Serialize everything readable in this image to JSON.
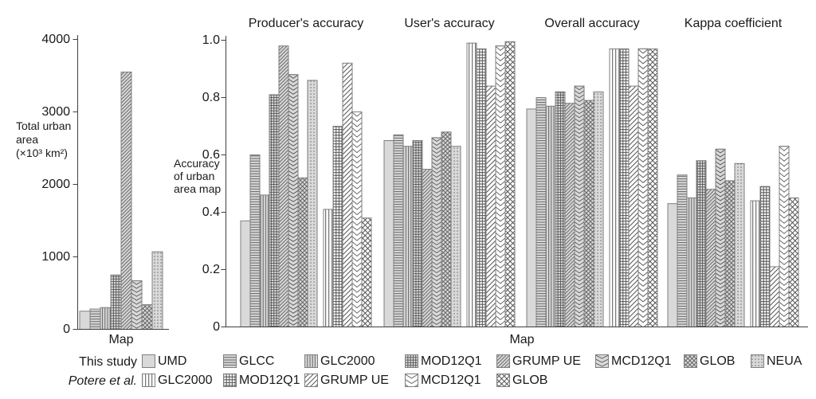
{
  "figure": {
    "description": "Comparison of total urban area and accuracy of urban area maps",
    "background": "#ffffff",
    "colors": {
      "bar_gray": "#d9d9d9",
      "bar_white": "#ffffff",
      "hatch": "#565656",
      "grid_hatch": "#4f4f4f",
      "dot": "#6a6a6a",
      "bar_border": "#7f7f7f",
      "axis": "#404040",
      "text": "#1a1a1a"
    }
  },
  "left_panel": {
    "ylabel_lines": [
      "Total urban",
      "area",
      "(×10³ km²)"
    ],
    "xlabel": "Map",
    "ytick_labels": [
      "0",
      "1000",
      "2000",
      "3000",
      "4000"
    ]
  },
  "right_panel": {
    "ylabel_lines": [
      "Accuracy",
      "of urban",
      "area map"
    ],
    "xlabel": "Map",
    "ytick_labels": [
      "0",
      "0.2",
      "0.4",
      "0.6",
      "0.8",
      "1.0"
    ],
    "group_titles": [
      "Producer's accuracy",
      "User's accuracy",
      "Overall accuracy",
      "Kappa coefficient"
    ]
  },
  "legend": {
    "row1_label": "This study",
    "row2_label": "Potere et al.",
    "row1_items": [
      {
        "label": "UMD",
        "pattern": "solid-gray"
      },
      {
        "label": "GLCC",
        "pattern": "h-gray"
      },
      {
        "label": "GLC2000",
        "pattern": "v-gray"
      },
      {
        "label": "MOD12Q1",
        "pattern": "grid-gray"
      },
      {
        "label": "GRUMP UE",
        "pattern": "diag-gray"
      },
      {
        "label": "MCD12Q1",
        "pattern": "chev-gray"
      },
      {
        "label": "GLOB",
        "pattern": "x-gray"
      },
      {
        "label": "NEUA",
        "pattern": "dots-gray"
      }
    ],
    "row2_items": [
      {
        "label": "GLC2000",
        "pattern": "v-white"
      },
      {
        "label": "MOD12Q1",
        "pattern": "grid-white"
      },
      {
        "label": "GRUMP UE",
        "pattern": "diag-white"
      },
      {
        "label": "MCD12Q1",
        "pattern": "chev-white"
      },
      {
        "label": "GLOB",
        "pattern": "x-white"
      }
    ]
  },
  "chart_data": [
    {
      "type": "bar",
      "title": "",
      "xlabel": "Map",
      "ylabel": "Total urban area (×10³ km²)",
      "ylim": [
        0,
        4000
      ],
      "yticks": [
        0,
        1000,
        2000,
        3000,
        4000
      ],
      "grid": false,
      "series_label": "This study",
      "categories": [
        "UMD",
        "GLCC",
        "GLC2000",
        "MOD12Q1",
        "GRUMP UE",
        "MCD12Q1",
        "GLOB",
        "NEUA"
      ],
      "values": [
        250,
        280,
        300,
        750,
        3550,
        670,
        340,
        1070
      ],
      "patterns": [
        "solid-gray",
        "h-gray",
        "v-gray",
        "grid-gray",
        "diag-gray",
        "chev-gray",
        "x-gray",
        "dots-gray"
      ]
    },
    {
      "type": "bar",
      "title": "",
      "xlabel": "Map",
      "ylabel": "Accuracy of urban area map",
      "ylim": [
        0,
        1.0
      ],
      "yticks": [
        0,
        0.2,
        0.4,
        0.6,
        0.8,
        1.0
      ],
      "grid": false,
      "groups": [
        "Producer's accuracy",
        "User's accuracy",
        "Overall accuracy",
        "Kappa coefficient"
      ],
      "series": [
        {
          "source": "This study",
          "name": "UMD",
          "pattern": "solid-gray",
          "values": [
            0.37,
            0.65,
            0.76,
            0.43
          ]
        },
        {
          "source": "This study",
          "name": "GLCC",
          "pattern": "h-gray",
          "values": [
            0.6,
            0.67,
            0.8,
            0.53
          ]
        },
        {
          "source": "This study",
          "name": "GLC2000",
          "pattern": "v-gray",
          "values": [
            0.46,
            0.63,
            0.77,
            0.45
          ]
        },
        {
          "source": "This study",
          "name": "MOD12Q1",
          "pattern": "grid-gray",
          "values": [
            0.81,
            0.65,
            0.82,
            0.58
          ]
        },
        {
          "source": "This study",
          "name": "GRUMP UE",
          "pattern": "diag-gray",
          "values": [
            0.98,
            0.55,
            0.78,
            0.48
          ]
        },
        {
          "source": "This study",
          "name": "MCD12Q1",
          "pattern": "chev-gray",
          "values": [
            0.88,
            0.66,
            0.84,
            0.62
          ]
        },
        {
          "source": "This study",
          "name": "GLOB",
          "pattern": "x-gray",
          "values": [
            0.52,
            0.68,
            0.79,
            0.51
          ]
        },
        {
          "source": "This study",
          "name": "NEUA",
          "pattern": "dots-gray",
          "values": [
            0.86,
            0.63,
            0.82,
            0.57
          ]
        },
        {
          "source": "Potere et al.",
          "name": "GLC2000",
          "pattern": "v-white",
          "values": [
            0.41,
            0.99,
            0.97,
            0.44
          ]
        },
        {
          "source": "Potere et al.",
          "name": "MOD12Q1",
          "pattern": "grid-white",
          "values": [
            0.7,
            0.97,
            0.97,
            0.49
          ]
        },
        {
          "source": "Potere et al.",
          "name": "GRUMP UE",
          "pattern": "diag-white",
          "values": [
            0.92,
            0.84,
            0.84,
            0.21
          ]
        },
        {
          "source": "Potere et al.",
          "name": "MCD12Q1",
          "pattern": "chev-white",
          "values": [
            0.75,
            0.98,
            0.97,
            0.63
          ]
        },
        {
          "source": "Potere et al.",
          "name": "GLOB",
          "pattern": "x-white",
          "values": [
            0.38,
            0.995,
            0.97,
            0.45
          ]
        }
      ]
    }
  ]
}
